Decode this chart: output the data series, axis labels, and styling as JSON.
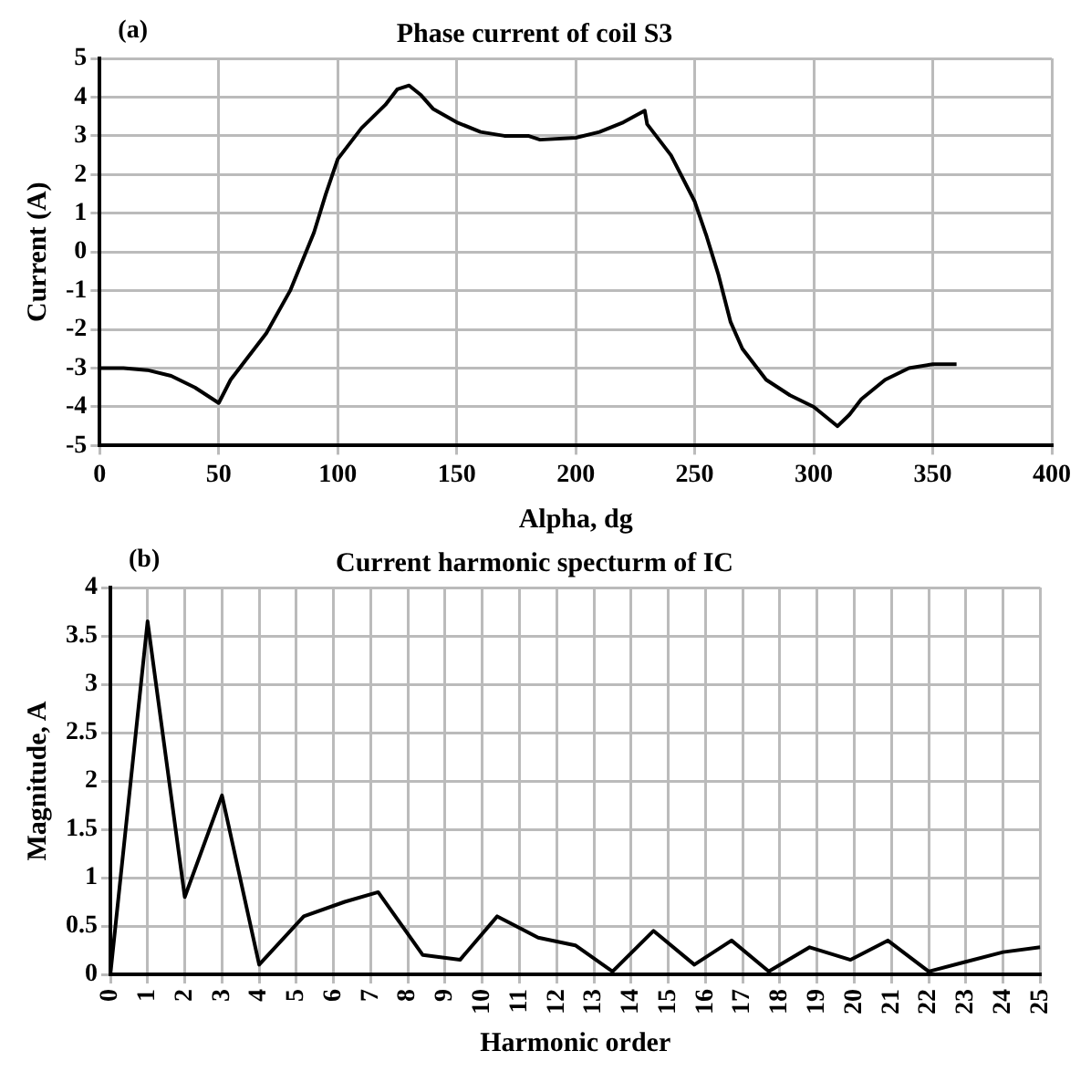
{
  "chart_data": [
    {
      "type": "line",
      "title": "Phase current of coil S3",
      "xlabel": "Alpha, dg",
      "ylabel": "Current (A)",
      "annotations": [
        "(a)"
      ],
      "grid": true,
      "marker": "none",
      "line_style": "solid",
      "xlim": [
        0,
        400
      ],
      "xticks": [
        0,
        50,
        100,
        150,
        200,
        250,
        300,
        350,
        400
      ],
      "ylim": [
        -5,
        5
      ],
      "yticks": [
        -5,
        -4,
        -3,
        -2,
        -1,
        0,
        1,
        2,
        3,
        4,
        5
      ],
      "series": [
        {
          "color": "#000000",
          "x": [
            0,
            10,
            20,
            30,
            40,
            50,
            55,
            60,
            70,
            80,
            90,
            95,
            100,
            110,
            120,
            125,
            130,
            135,
            140,
            150,
            160,
            170,
            180,
            185,
            200,
            210,
            220,
            229,
            230,
            240,
            250,
            255,
            260,
            265,
            270,
            280,
            290,
            300,
            310,
            315,
            320,
            330,
            340,
            350,
            360
          ],
          "values": [
            -3,
            -3,
            -3.05,
            -3.2,
            -3.5,
            -3.9,
            -3.3,
            -2.9,
            -2.1,
            -1,
            0.5,
            1.5,
            2.4,
            3.2,
            3.8,
            4.2,
            4.3,
            4.05,
            3.7,
            3.35,
            3.1,
            3,
            3,
            2.9,
            2.95,
            3.1,
            3.35,
            3.65,
            3.3,
            2.5,
            1.3,
            0.4,
            -0.6,
            -1.8,
            -2.5,
            -3.3,
            -3.7,
            -4,
            -4.5,
            -4.2,
            -3.8,
            -3.3,
            -3,
            -2.9,
            -2.9
          ]
        }
      ]
    },
    {
      "type": "line",
      "title": "Current harmonic specturm of IC",
      "xlabel": "Harmonic order",
      "ylabel": "Magnitude, A",
      "annotations": [
        "(b)"
      ],
      "grid": true,
      "marker": "none",
      "line_style": "solid",
      "xlim": [
        0,
        25
      ],
      "xticks": [
        0,
        1,
        2,
        3,
        4,
        5,
        6,
        7,
        8,
        9,
        10,
        11,
        12,
        13,
        14,
        15,
        16,
        17,
        18,
        19,
        20,
        21,
        22,
        23,
        24,
        25
      ],
      "ylim": [
        0,
        4
      ],
      "yticks": [
        0,
        0.5,
        1,
        1.5,
        2,
        2.5,
        3,
        3.5,
        4
      ],
      "series": [
        {
          "color": "#000000",
          "x": [
            0,
            1,
            2,
            3,
            4,
            5.2,
            6.3,
            7.2,
            8.4,
            9.4,
            10.4,
            11.5,
            12.5,
            13.5,
            14.6,
            15.7,
            16.7,
            17.7,
            18.8,
            19.9,
            20.9,
            22,
            22.9,
            24,
            25
          ],
          "values": [
            0,
            3.65,
            0.8,
            1.85,
            0.1,
            0.6,
            0.75,
            0.85,
            0.2,
            0.15,
            0.6,
            0.38,
            0.3,
            0.03,
            0.45,
            0.1,
            0.35,
            0.03,
            0.28,
            0.15,
            0.35,
            0.03,
            0.12,
            0.23,
            0.28
          ]
        }
      ]
    }
  ]
}
